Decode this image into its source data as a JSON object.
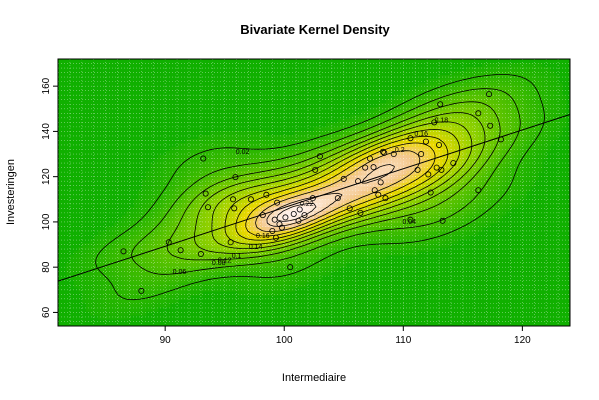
{
  "chart_data": {
    "type": "contour",
    "title": "Bivariate Kernel Density",
    "xlabel": "Intermediaire",
    "ylabel": "Investeringen",
    "xlim": [
      81,
      124
    ],
    "ylim": [
      54,
      172
    ],
    "x_ticks": [
      90,
      100,
      110,
      120
    ],
    "y_ticks": [
      60,
      80,
      100,
      120,
      140,
      160
    ],
    "grid": true,
    "colors": {
      "low": "#10b000",
      "mid": "#e8d800",
      "high": "#fff2ee",
      "lines": "#000000"
    },
    "contour_labels": [
      {
        "label": "0.02",
        "x": 96.5,
        "y": 130
      },
      {
        "label": "0.04",
        "x": 110.5,
        "y": 99
      },
      {
        "label": "0.06",
        "x": 91.2,
        "y": 77
      },
      {
        "label": "0.08",
        "x": 94.5,
        "y": 81
      },
      {
        "label": "0.1",
        "x": 96.0,
        "y": 84
      },
      {
        "label": "0.12",
        "x": 95.0,
        "y": 82
      },
      {
        "label": "0.14",
        "x": 97.6,
        "y": 88
      },
      {
        "label": "0.16",
        "x": 98.2,
        "y": 93
      },
      {
        "label": "0.16",
        "x": 111.5,
        "y": 138
      },
      {
        "label": "0.18",
        "x": 113.2,
        "y": 144
      },
      {
        "label": "0.2",
        "x": 109.7,
        "y": 131
      },
      {
        "label": "0.22",
        "x": 101.9,
        "y": 107
      }
    ],
    "regression_line": {
      "x": [
        81,
        124
      ],
      "y": [
        73.8,
        147.5
      ]
    },
    "points": [
      [
        86.5,
        87
      ],
      [
        88,
        69.5
      ],
      [
        90.3,
        91
      ],
      [
        91.3,
        87.5
      ],
      [
        93.2,
        128
      ],
      [
        93.4,
        112.5
      ],
      [
        93.6,
        106.5
      ],
      [
        93,
        85.8
      ],
      [
        95.5,
        91
      ],
      [
        95.7,
        110
      ],
      [
        95.8,
        106
      ],
      [
        95.9,
        119.8
      ],
      [
        97.2,
        110
      ],
      [
        98.2,
        103
      ],
      [
        98.5,
        112
      ],
      [
        99,
        96
      ],
      [
        99.3,
        93
      ],
      [
        99.4,
        108.5
      ],
      [
        99.2,
        101
      ],
      [
        99.6,
        99
      ],
      [
        99.8,
        97.5
      ],
      [
        100.1,
        102
      ],
      [
        100.5,
        80
      ],
      [
        100.8,
        103.5
      ],
      [
        101.2,
        100.5
      ],
      [
        101.3,
        105.5
      ],
      [
        101.7,
        103
      ],
      [
        102.4,
        110.5
      ],
      [
        102.6,
        123
      ],
      [
        103,
        129
      ],
      [
        104.5,
        110.5
      ],
      [
        105,
        119
      ],
      [
        105.5,
        106
      ],
      [
        106.2,
        118
      ],
      [
        106.4,
        104
      ],
      [
        106.8,
        124
      ],
      [
        107.2,
        128
      ],
      [
        107.5,
        124.2
      ],
      [
        107.6,
        114
      ],
      [
        107.9,
        112
      ],
      [
        108.1,
        117.5
      ],
      [
        108.3,
        131
      ],
      [
        108.4,
        130.5
      ],
      [
        108.5,
        110.5
      ],
      [
        109.2,
        130
      ],
      [
        110.6,
        137
      ],
      [
        110.6,
        101
      ],
      [
        111.2,
        123
      ],
      [
        111.5,
        130
      ],
      [
        111.9,
        135.5
      ],
      [
        112.1,
        121
      ],
      [
        112.3,
        113
      ],
      [
        112.6,
        144
      ],
      [
        112.8,
        124
      ],
      [
        113,
        134
      ],
      [
        113.1,
        152
      ],
      [
        113.2,
        123
      ],
      [
        113.3,
        100.5
      ],
      [
        114.2,
        126
      ],
      [
        116.3,
        148
      ],
      [
        116.3,
        114
      ],
      [
        117.2,
        156.5
      ],
      [
        117.3,
        142.5
      ],
      [
        118.2,
        136.5
      ]
    ]
  }
}
